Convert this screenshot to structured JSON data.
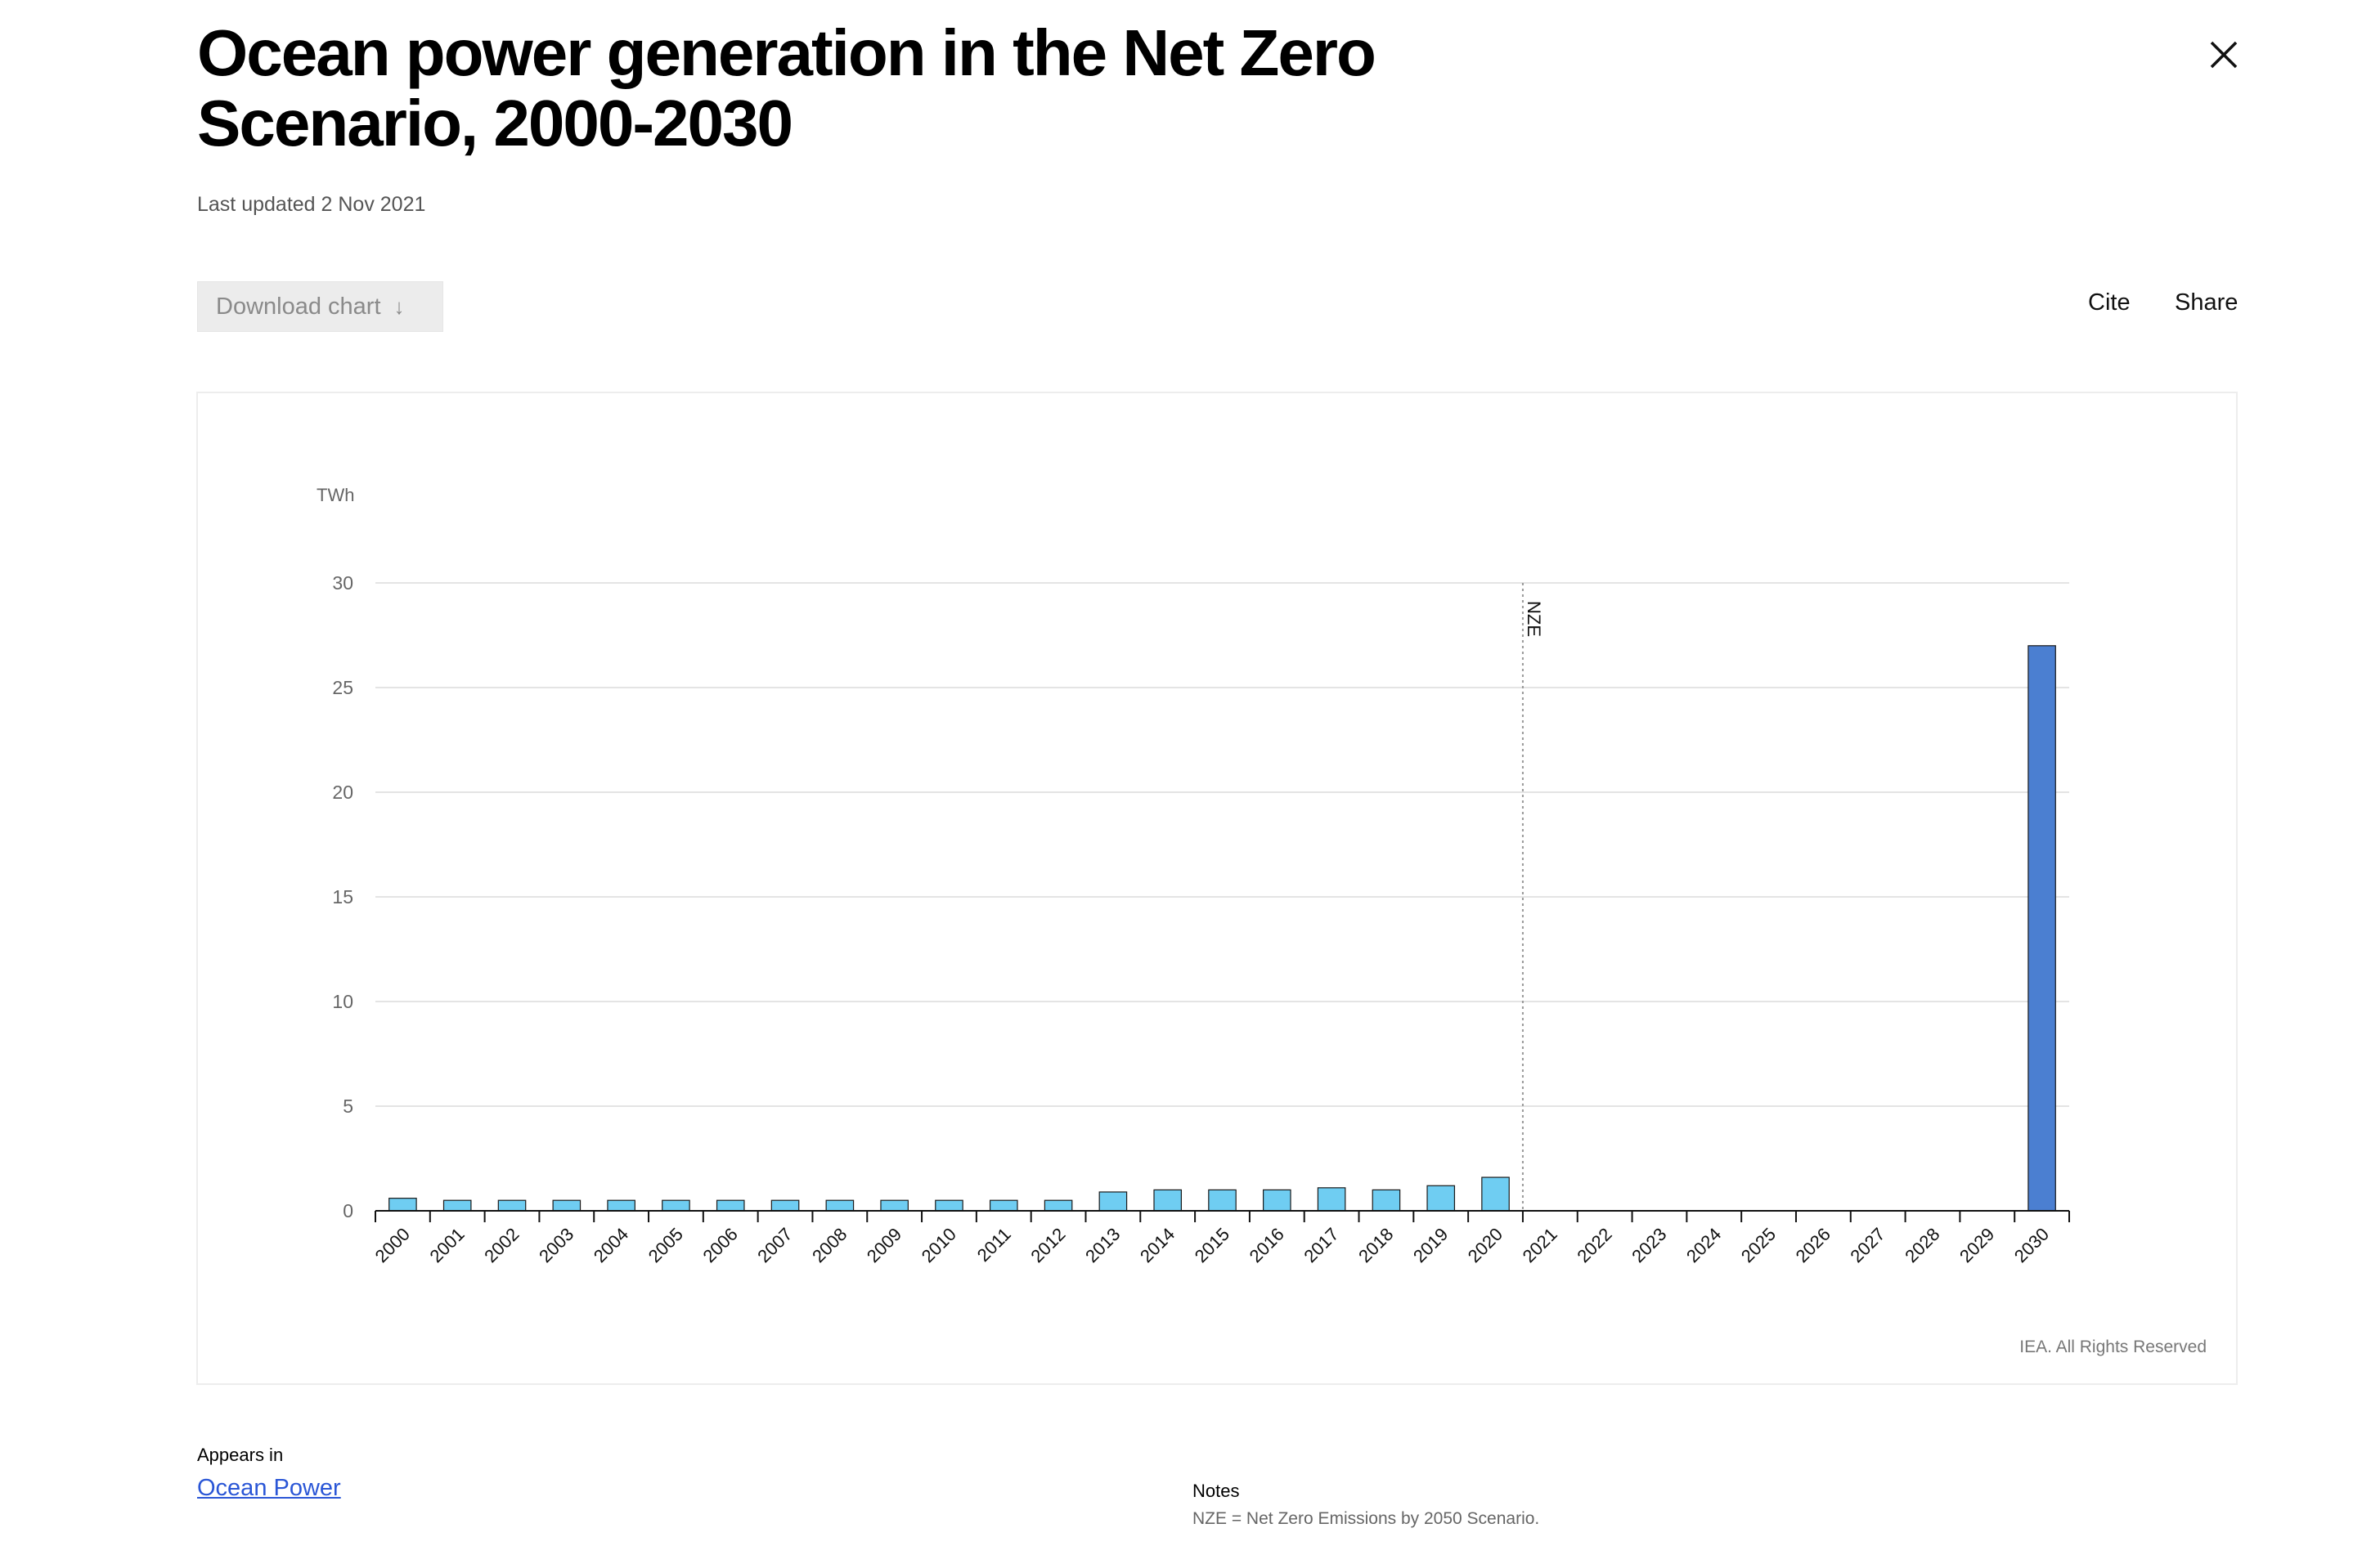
{
  "header": {
    "title": "Ocean power generation in the Net Zero Scenario, 2000-2030",
    "last_updated": "Last updated 2 Nov 2021"
  },
  "toolbar": {
    "download_label": "Download chart",
    "download_icon": "arrow-down-icon",
    "cite_label": "Cite",
    "share_label": "Share",
    "close_icon": "close-icon"
  },
  "chart_data": {
    "type": "bar",
    "title": "",
    "ylabel": "TWh",
    "xlabel": "",
    "ylim": [
      0,
      30
    ],
    "yticks": [
      0,
      5,
      10,
      15,
      20,
      25,
      30
    ],
    "grid": true,
    "categories": [
      "2000",
      "2001",
      "2002",
      "2003",
      "2004",
      "2005",
      "2006",
      "2007",
      "2008",
      "2009",
      "2010",
      "2011",
      "2012",
      "2013",
      "2014",
      "2015",
      "2016",
      "2017",
      "2018",
      "2019",
      "2020",
      "2021",
      "2022",
      "2023",
      "2024",
      "2025",
      "2026",
      "2027",
      "2028",
      "2029",
      "2030"
    ],
    "values": [
      0.6,
      0.5,
      0.5,
      0.5,
      0.5,
      0.5,
      0.5,
      0.5,
      0.5,
      0.5,
      0.5,
      0.5,
      0.5,
      0.9,
      1.0,
      1.0,
      1.0,
      1.1,
      1.0,
      1.2,
      1.6,
      null,
      null,
      null,
      null,
      null,
      null,
      null,
      null,
      null,
      27.0
    ],
    "colors": {
      "historical": "#6fcdf2",
      "scenario": "#4b7fd1",
      "bar_outline": "#1a1a1a"
    },
    "annotation": {
      "label": "NZE",
      "at_category": "2021"
    }
  },
  "footer": {
    "copyright": "IEA. All Rights Reserved",
    "appears_in_label": "Appears in",
    "appears_in_link": "Ocean Power",
    "notes_heading": "Notes",
    "notes_text": "NZE = Net Zero Emissions by 2050 Scenario."
  }
}
